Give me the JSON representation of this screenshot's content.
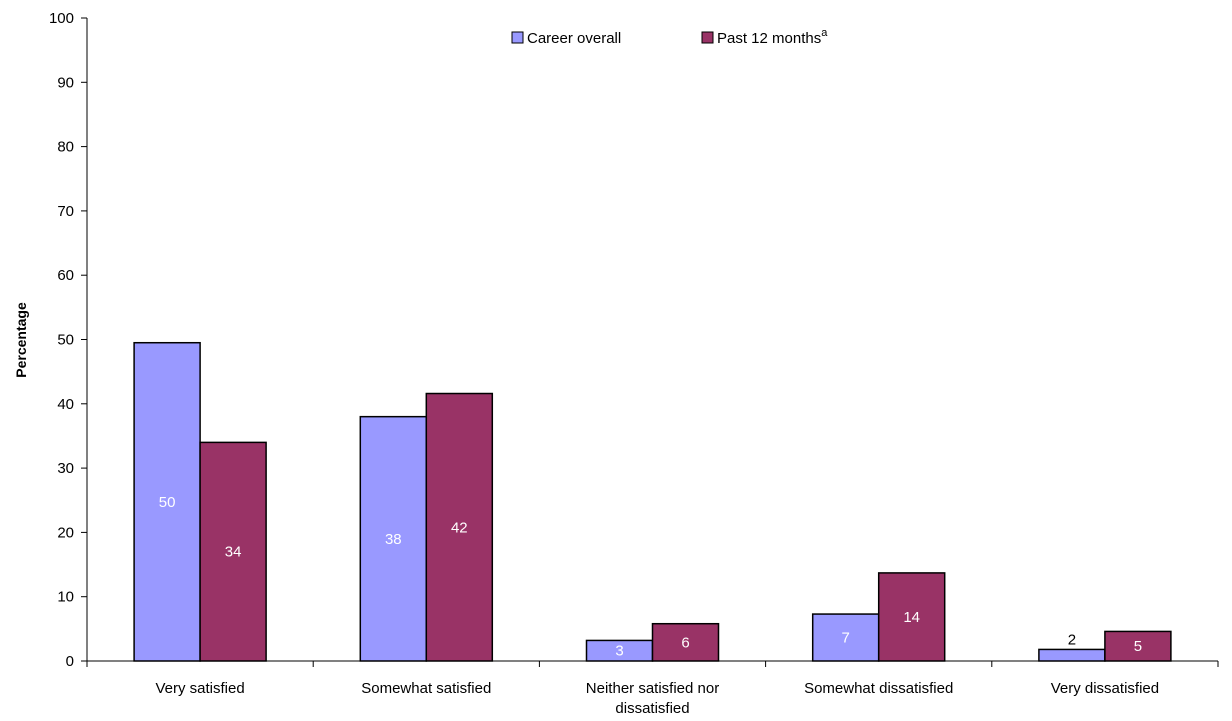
{
  "chart_data": {
    "type": "bar",
    "title": "",
    "xlabel": "",
    "ylabel": "Percentage",
    "ylim": [
      0,
      100
    ],
    "yticks": [
      0,
      10,
      20,
      30,
      40,
      50,
      60,
      70,
      80,
      90,
      100
    ],
    "grid": false,
    "legend_position": "top-center",
    "categories": [
      [
        "Very satisfied"
      ],
      [
        "Somewhat satisfied"
      ],
      [
        "Neither satisfied nor",
        "dissatisfied"
      ],
      [
        "Somewhat dissatisfied"
      ],
      [
        "Very dissatisfied"
      ]
    ],
    "series": [
      {
        "name": "Career overall",
        "superscript": "",
        "color": "#9999ff",
        "label_color": "#ffffff",
        "values": [
          49.5,
          38,
          3.2,
          7.3,
          1.8
        ],
        "labels": [
          "50",
          "38",
          "3",
          "7",
          "2"
        ]
      },
      {
        "name": "Past 12 months",
        "superscript": "a",
        "color": "#993366",
        "label_color": "#ffffff",
        "values": [
          34,
          41.6,
          5.8,
          13.7,
          4.6
        ],
        "labels": [
          "34",
          "42",
          "6",
          "14",
          "5"
        ]
      }
    ]
  }
}
